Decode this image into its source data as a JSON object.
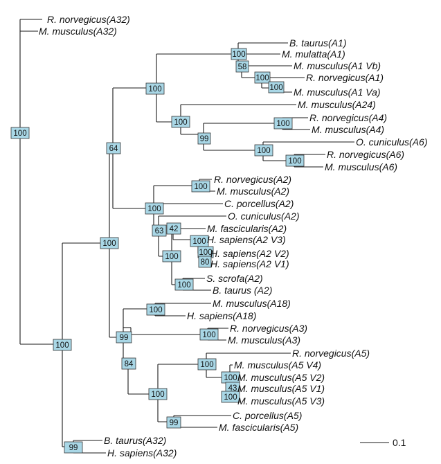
{
  "taxa": [
    "R. norvegicus(A32)",
    "M. musculus(A32)",
    "B. taurus(A1)",
    "M. mulatta(A1)",
    "M. musculus(A1 Vb)",
    "R. norvegicus(A1)",
    "M. musculus(A1 Va)",
    "M. musculus(A24)",
    "R. norvegicus(A4)",
    "M. musculus(A4)",
    "O. cuniculus(A6)",
    "R. norvegicus(A6)",
    "M. musculus(A6)",
    "R. norvegicus(A2)",
    "M. musculus(A2)",
    "C. porcellus(A2)",
    "O. cuniculus(A2)",
    "M. fascicularis(A2)",
    "H. sapiens(A2 V3)",
    "H. sapiens(A2 V2)",
    "H. sapiens(A2 V1)",
    "S. scrofa(A2)",
    "B. taurus (A2)",
    "M. musculus(A18)",
    "H. sapiens(A18)",
    "R. norvegicus(A3)",
    "M. musculus(A3)",
    "R. norvegicus(A5)",
    "M. musculus(A5 V4)",
    "M. musculus(A5 V2)",
    "M. musculus(A5 V1)",
    "M. musculus(A5 V3)",
    "C. porcellus(A5)",
    "M. fascicularis(A5)",
    "B. taurus(A32)",
    "H. sapiens(A32)"
  ],
  "bootstrap": {
    "root": "100",
    "a1_group": "100",
    "mulatta_a1": "100",
    "vb_a1": "58",
    "rno_a1": "100",
    "mmu_a1": "100",
    "a24_group": "100",
    "a4_a6": "99",
    "a4": "100",
    "a6": "100",
    "a6_inner": "100",
    "upper": "64",
    "a2_group": "100",
    "a2_rodent": "100",
    "a2_ungulate": "63",
    "a2_primate": "42",
    "a2_hsa": "100",
    "a2_hsa_inner": "100",
    "a2_hsa_v1": "80",
    "a2_ss_bt": "100",
    "a2_bt": "100",
    "big": "100",
    "a18_a3_a5": "99",
    "a18": "100",
    "a3": "100",
    "a5_group": "84",
    "a5": "100",
    "a5_inner": "100",
    "a5_v2": "100",
    "a5_v1": "43",
    "a5_v3": "100",
    "a5_cp": "99",
    "a32": "100"
  },
  "scale_label": "0.1"
}
